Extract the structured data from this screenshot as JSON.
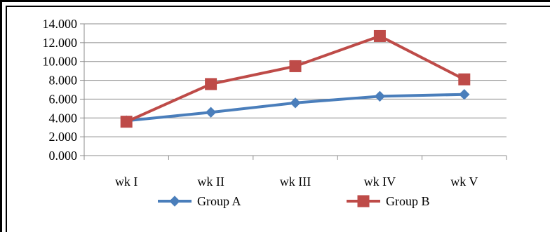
{
  "chart_data": {
    "type": "line",
    "categories": [
      "wk I",
      "wk II",
      "wk III",
      "wk IV",
      "wk V"
    ],
    "series": [
      {
        "name": "Group A",
        "values": [
          3.7,
          4.6,
          5.6,
          6.3,
          6.5
        ],
        "color": "#4a7ebb",
        "marker": "diamond"
      },
      {
        "name": "Group B",
        "values": [
          3.6,
          7.6,
          9.5,
          12.7,
          8.1
        ],
        "color": "#be4b48",
        "marker": "square"
      }
    ],
    "y_ticks": [
      "0.000",
      "2.000",
      "4.000",
      "6.000",
      "8.000",
      "10.000",
      "12.000",
      "14.000"
    ],
    "ylim": [
      0,
      14
    ],
    "grid": true,
    "legend_position": "bottom"
  }
}
